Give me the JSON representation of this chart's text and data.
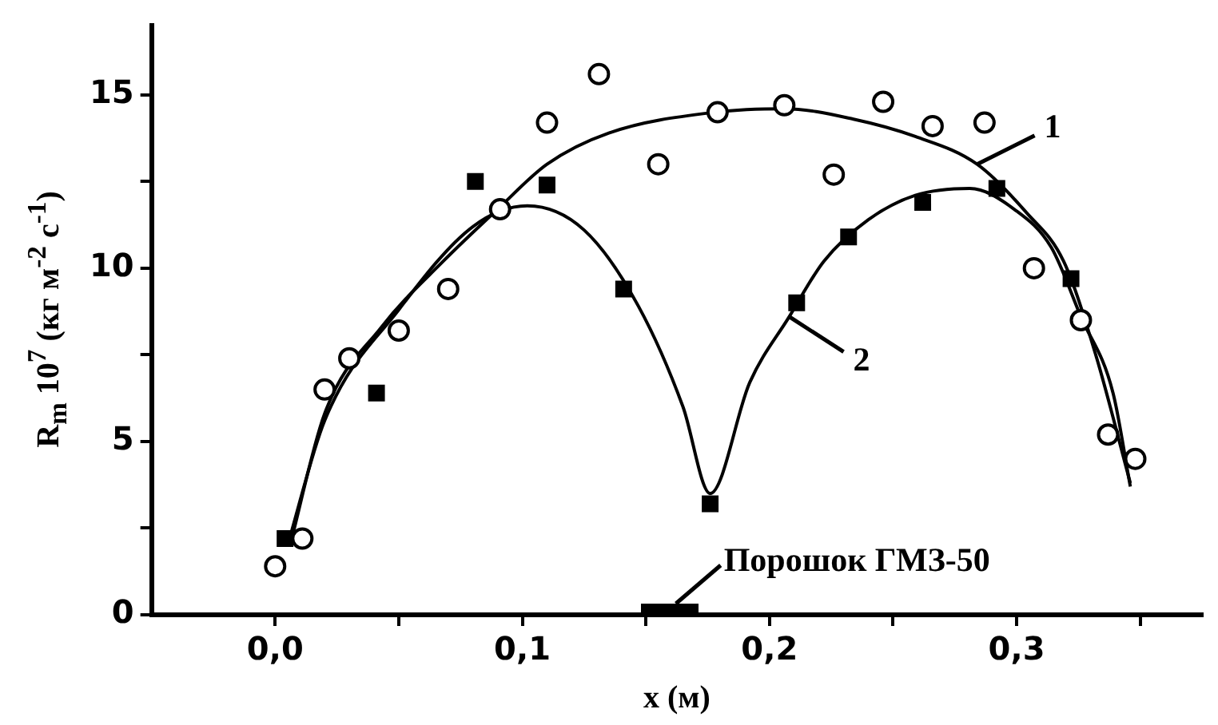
{
  "chart_data": {
    "type": "scatter",
    "xlabel": "x (м)",
    "ylabel": "R$_{m}$ 10$^{7}$ (кг м$^{-2}$ с$^{-1}$)",
    "xlim": [
      -0.05,
      0.375
    ],
    "ylim": [
      0,
      17
    ],
    "xticks": [
      {
        "value": 0,
        "label": "0,0"
      },
      {
        "value": 0.05,
        "label": null
      },
      {
        "value": 0.1,
        "label": "0,1"
      },
      {
        "value": 0.15,
        "label": null
      },
      {
        "value": 0.2,
        "label": "0,2"
      },
      {
        "value": 0.25,
        "label": null
      },
      {
        "value": 0.3,
        "label": "0,3"
      },
      {
        "value": 0.35,
        "label": null
      }
    ],
    "yticks": [
      0,
      {
        "value": 2.5,
        "label": null
      },
      5,
      {
        "value": 7.5,
        "label": null
      },
      10,
      {
        "value": 12.5,
        "label": null
      },
      15
    ],
    "series": [
      {
        "type": "scatter",
        "marker": "circle",
        "color": "#000000",
        "x": [
          0,
          0.011,
          0.02,
          0.03,
          0.05,
          0.07,
          0.091,
          0.11,
          0.131,
          0.155,
          0.179,
          0.206,
          0.226,
          0.246,
          0.266,
          0.287,
          0.307,
          0.326,
          0.337,
          0.348
        ],
        "values": [
          1.4,
          2.2,
          6.5,
          7.4,
          8.2,
          9.4,
          11.7,
          14.2,
          15.6,
          13.0,
          14.5,
          14.7,
          12.7,
          14.8,
          14.1,
          14.2,
          10.0,
          8.5,
          5.2,
          4.5
        ]
      },
      {
        "type": "scatter",
        "marker": "square",
        "color": "#000000",
        "x": [
          0.004,
          0.041,
          0.081,
          0.11,
          0.141,
          0.176,
          0.211,
          0.232,
          0.262,
          0.292,
          0.322
        ],
        "values": [
          2.2,
          6.4,
          12.5,
          12.4,
          9.4,
          3.2,
          9.0,
          10.9,
          11.9,
          12.3,
          9.7
        ]
      },
      {
        "type": "line",
        "name": "1",
        "marker": "none",
        "color": "#000000",
        "x": [
          0.006,
          0.02,
          0.043,
          0.068,
          0.09,
          0.11,
          0.135,
          0.178,
          0.206,
          0.234,
          0.259,
          0.284,
          0.304,
          0.319,
          0.332,
          0.346
        ],
        "values": [
          2.0,
          5.8,
          8.3,
          10.2,
          11.7,
          13.0,
          13.9,
          14.5,
          14.6,
          14.3,
          13.8,
          13.0,
          11.6,
          10.2,
          7.5,
          3.8
        ]
      },
      {
        "type": "line",
        "name": "2",
        "marker": "none",
        "color": "#000000",
        "x": [
          0.005,
          0.02,
          0.05,
          0.08,
          0.102,
          0.125,
          0.147,
          0.165,
          0.176,
          0.192,
          0.208,
          0.222,
          0.24,
          0.259,
          0.281,
          0.299,
          0.314,
          0.326,
          0.339,
          0.346
        ],
        "values": [
          2.0,
          5.6,
          8.8,
          11.2,
          11.8,
          11.1,
          8.9,
          6.0,
          3.5,
          6.7,
          8.6,
          10.2,
          11.4,
          12.1,
          12.3,
          11.7,
          10.6,
          8.6,
          6.4,
          3.7
        ]
      }
    ],
    "annotations": [
      "Порошок ГМЗ-50"
    ]
  }
}
